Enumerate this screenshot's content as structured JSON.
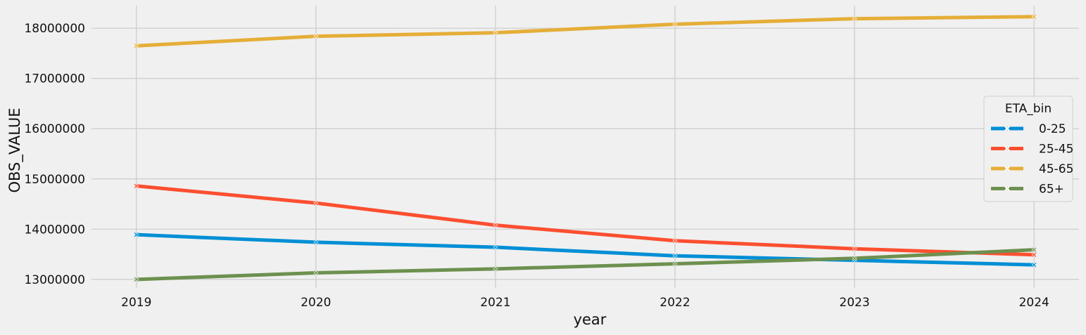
{
  "chart_data": {
    "type": "line",
    "xlabel": "year",
    "ylabel": "OBS_VALUE",
    "x": [
      2019,
      2020,
      2021,
      2022,
      2023,
      2024
    ],
    "xlim": [
      2018.75,
      2024.25
    ],
    "ylim": [
      12830000,
      18450000
    ],
    "yticks": [
      13000000,
      14000000,
      15000000,
      16000000,
      17000000,
      18000000
    ],
    "grid": true,
    "legend": {
      "title": "ETA_bin",
      "position": "right"
    },
    "marker": "x",
    "series": [
      {
        "name": "0-25",
        "color": "#008fd5",
        "values": [
          13890000,
          13740000,
          13640000,
          13470000,
          13380000,
          13290000
        ]
      },
      {
        "name": "25-45",
        "color": "#fc4f30",
        "values": [
          14860000,
          14520000,
          14080000,
          13770000,
          13610000,
          13490000
        ]
      },
      {
        "name": "45-65",
        "color": "#e5ae38",
        "values": [
          17650000,
          17840000,
          17910000,
          18080000,
          18190000,
          18230000
        ]
      },
      {
        "name": "65+",
        "color": "#6d904f",
        "values": [
          13000000,
          13130000,
          13210000,
          13310000,
          13420000,
          13590000
        ]
      }
    ]
  }
}
